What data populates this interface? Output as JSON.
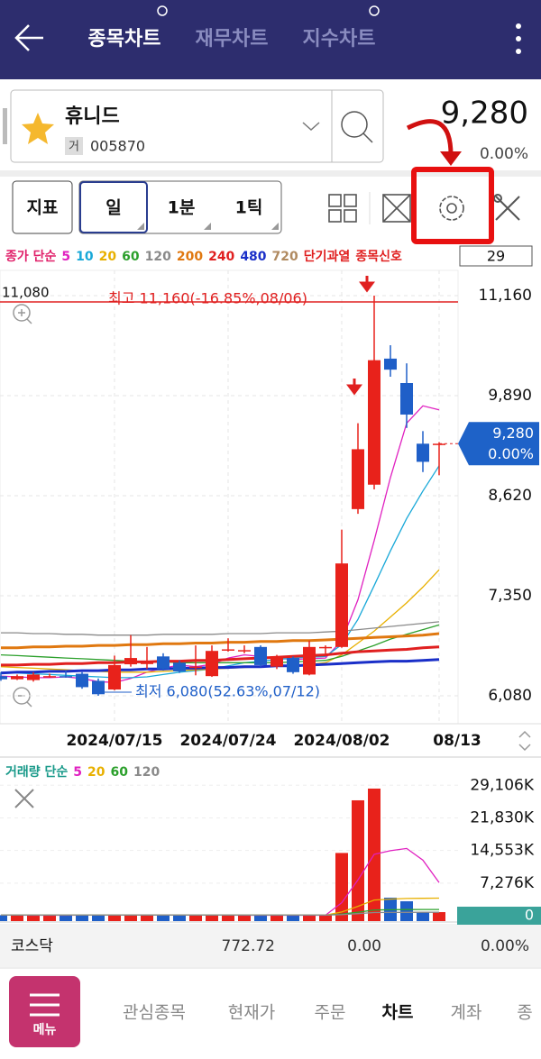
{
  "header": {
    "tabs": [
      "종목차트",
      "재무차트",
      "지수차트"
    ]
  },
  "stock": {
    "name": "휴니드",
    "market_tag": "거",
    "code": "005870",
    "price": "9,280",
    "change": "0.00%"
  },
  "toolbar": {
    "indicator": "지표",
    "periods": [
      "일",
      "1분",
      "1틱"
    ],
    "count": "29"
  },
  "chart_data": [
    {
      "type": "candlestick",
      "legend_title": "종가 단순",
      "legend_title_color": "#e0206a",
      "categories": [
        null,
        null,
        null,
        null,
        null,
        null,
        null,
        "2024/07/15",
        null,
        null,
        null,
        null,
        null,
        null,
        "2024/07/24",
        null,
        null,
        null,
        null,
        null,
        null,
        "2024/08/02",
        null,
        null,
        null,
        null,
        null,
        "08/13"
      ],
      "open": [
        6330,
        6290,
        6280,
        6330,
        6330,
        6360,
        6270,
        6160,
        6480,
        6500,
        6580,
        6500,
        6450,
        6330,
        6670,
        6660,
        6700,
        6450,
        6560,
        6350,
        6700,
        6700,
        8450,
        8760,
        10360,
        10050,
        9280,
        9280
      ],
      "high": [
        6380,
        6350,
        6380,
        6360,
        6400,
        6380,
        6300,
        6590,
        6850,
        6700,
        6620,
        6530,
        6720,
        6720,
        6810,
        6720,
        6720,
        6600,
        6580,
        6780,
        6720,
        8190,
        9540,
        11160,
        10530,
        10300,
        9440,
        9300
      ],
      "low": [
        6270,
        6280,
        6260,
        6310,
        6310,
        6170,
        6080,
        6150,
        6450,
        6420,
        6400,
        6370,
        6340,
        6320,
        6640,
        6620,
        6450,
        6420,
        6360,
        6340,
        6600,
        6690,
        8390,
        8700,
        10130,
        9480,
        8920,
        8880
      ],
      "close": [
        6290,
        6330,
        6350,
        6330,
        6320,
        6190,
        6100,
        6470,
        6560,
        6500,
        6420,
        6390,
        6450,
        6650,
        6670,
        6660,
        6470,
        6580,
        6380,
        6700,
        6700,
        7760,
        9210,
        10340,
        10220,
        9650,
        9050,
        9280
      ],
      "up_color": "#e8221b",
      "down_color": "#1f5fc8",
      "series": [
        {
          "name": "5",
          "color": "#e020c0",
          "values": [
            6330,
            6320,
            6310,
            6310,
            6320,
            6300,
            6260,
            6250,
            6300,
            6380,
            6430,
            6470,
            6450,
            6480,
            6560,
            6600,
            6580,
            6560,
            6540,
            6550,
            6560,
            6780,
            7300,
            8050,
            8850,
            9540,
            9760,
            9710
          ]
        },
        {
          "name": "10",
          "color": "#18a8d8",
          "values": [
            6380,
            6370,
            6360,
            6350,
            6340,
            6330,
            6320,
            6310,
            6310,
            6320,
            6350,
            6380,
            6400,
            6420,
            6460,
            6500,
            6520,
            6540,
            6560,
            6570,
            6580,
            6730,
            7050,
            7480,
            7920,
            8330,
            8680,
            9000
          ]
        },
        {
          "name": "20",
          "color": "#e8b000",
          "values": [
            6450,
            6440,
            6430,
            6420,
            6410,
            6400,
            6390,
            6380,
            6380,
            6380,
            6390,
            6400,
            6410,
            6420,
            6430,
            6440,
            6450,
            6460,
            6470,
            6480,
            6500,
            6600,
            6750,
            6900,
            7080,
            7260,
            7460,
            7680
          ]
        },
        {
          "name": "60",
          "color": "#2ca02c",
          "values": [
            6600,
            6590,
            6580,
            6570,
            6560,
            6550,
            6540,
            6530,
            6520,
            6510,
            6510,
            6500,
            6500,
            6500,
            6500,
            6500,
            6500,
            6500,
            6510,
            6520,
            6530,
            6580,
            6650,
            6720,
            6800,
            6860,
            6920,
            6980
          ]
        },
        {
          "name": "120",
          "color": "#8a8a8a",
          "values": [
            6880,
            6880,
            6870,
            6870,
            6860,
            6860,
            6850,
            6850,
            6850,
            6850,
            6860,
            6860,
            6860,
            6860,
            6870,
            6870,
            6870,
            6880,
            6880,
            6880,
            6890,
            6900,
            6920,
            6940,
            6960,
            6980,
            7000,
            7020
          ]
        },
        {
          "name": "200",
          "color": "#e07810",
          "values": [
            6690,
            6690,
            6700,
            6700,
            6710,
            6710,
            6720,
            6720,
            6730,
            6730,
            6740,
            6740,
            6750,
            6750,
            6760,
            6760,
            6770,
            6770,
            6780,
            6780,
            6790,
            6800,
            6810,
            6820,
            6830,
            6840,
            6850,
            6870
          ]
        },
        {
          "name": "240",
          "color": "#e02020",
          "values": [
            6470,
            6470,
            6480,
            6480,
            6490,
            6490,
            6500,
            6500,
            6510,
            6510,
            6520,
            6520,
            6530,
            6530,
            6540,
            6550,
            6560,
            6570,
            6580,
            6590,
            6600,
            6620,
            6640,
            6650,
            6660,
            6670,
            6690,
            6700
          ]
        },
        {
          "name": "480",
          "color": "#1a2fc8",
          "values": [
            6370,
            6380,
            6380,
            6390,
            6390,
            6400,
            6400,
            6410,
            6410,
            6420,
            6420,
            6430,
            6430,
            6440,
            6440,
            6450,
            6450,
            6460,
            6460,
            6470,
            6480,
            6490,
            6500,
            6510,
            6520,
            6520,
            6530,
            6540
          ]
        },
        {
          "name": "720",
          "color": "#b08a60",
          "values": [
            null,
            null,
            null,
            null,
            null,
            null,
            null,
            null,
            null,
            null,
            null,
            null,
            null,
            null,
            null,
            null,
            null,
            null,
            null,
            null,
            null,
            null,
            null,
            null,
            null,
            null,
            null,
            null
          ]
        }
      ],
      "legend_extra": [
        {
          "text": "단기과열",
          "color": "#e02020"
        },
        {
          "text": "종목신호",
          "color": "#e02020"
        }
      ],
      "ylim": [
        5760,
        11480
      ],
      "yticks": [
        {
          "value": 6080,
          "label": "6,080"
        },
        {
          "value": 7350,
          "label": "7,350"
        },
        {
          "value": 8620,
          "label": "8,620"
        },
        {
          "value": 9890,
          "label": "9,890"
        },
        {
          "value": 11160,
          "label": "11,160"
        }
      ],
      "grid": true,
      "hline": {
        "value": 11080,
        "label": "11,080",
        "color": "#e02020"
      },
      "high_note": "최고 11,160(-16.85%,08/06)",
      "low_note": "최저 6,080(52.63%,07/12)",
      "last_price": {
        "value": 9280,
        "label": "9,280",
        "change": "0.00%",
        "color": "#1e62c8"
      }
    },
    {
      "type": "volume",
      "legend_title": "거래량 단순",
      "legend_title_color": "#1a9a8a",
      "values": [
        120,
        90,
        110,
        80,
        100,
        150,
        180,
        200,
        160,
        120,
        110,
        100,
        90,
        130,
        100,
        90,
        110,
        100,
        90,
        140,
        120,
        14000,
        25750,
        28370,
        4020,
        3220,
        800,
        800
      ],
      "series": [
        {
          "name": "5",
          "color": "#e020c0",
          "values": [
            120,
            115,
            110,
            105,
            110,
            115,
            125,
            145,
            160,
            160,
            155,
            140,
            125,
            115,
            115,
            110,
            105,
            105,
            100,
            110,
            110,
            2900,
            8000,
            13700,
            14500,
            15000,
            12400,
            7400
          ]
        },
        {
          "name": "20",
          "color": "#e8b000",
          "values": [
            120,
            120,
            120,
            120,
            120,
            120,
            120,
            120,
            120,
            120,
            120,
            120,
            120,
            120,
            120,
            120,
            120,
            120,
            120,
            120,
            120,
            820,
            2100,
            3500,
            3700,
            3850,
            3880,
            3920
          ]
        },
        {
          "name": "60",
          "color": "#2ca02c",
          "values": [
            130,
            130,
            130,
            130,
            130,
            130,
            130,
            130,
            130,
            130,
            130,
            130,
            130,
            130,
            130,
            130,
            130,
            130,
            130,
            130,
            130,
            360,
            790,
            1260,
            1320,
            1370,
            1380,
            1390
          ]
        },
        {
          "name": "120",
          "color": "#8a8a8a",
          "values": [
            140,
            140,
            140,
            140,
            140,
            140,
            140,
            140,
            140,
            140,
            140,
            140,
            140,
            140,
            140,
            140,
            140,
            140,
            140,
            140,
            140,
            250,
            460,
            700,
            730,
            750,
            760,
            770
          ]
        }
      ],
      "ylim": [
        0,
        35000
      ],
      "yticks": [
        0,
        {
          "value": 7276,
          "label": "7,276K"
        },
        {
          "value": 14553,
          "label": "14,553K"
        },
        {
          "value": 21830,
          "label": "21,830K"
        },
        {
          "value": 29106,
          "label": "29,106K"
        }
      ]
    }
  ],
  "market": {
    "name": "코스닥",
    "index": "772.72",
    "change": "0.00",
    "change_pct": "0.00%"
  },
  "nav": {
    "menu": "메뉴",
    "tabs": [
      "관심종목",
      "현재가",
      "주문",
      "차트",
      "계좌",
      "종"
    ]
  }
}
